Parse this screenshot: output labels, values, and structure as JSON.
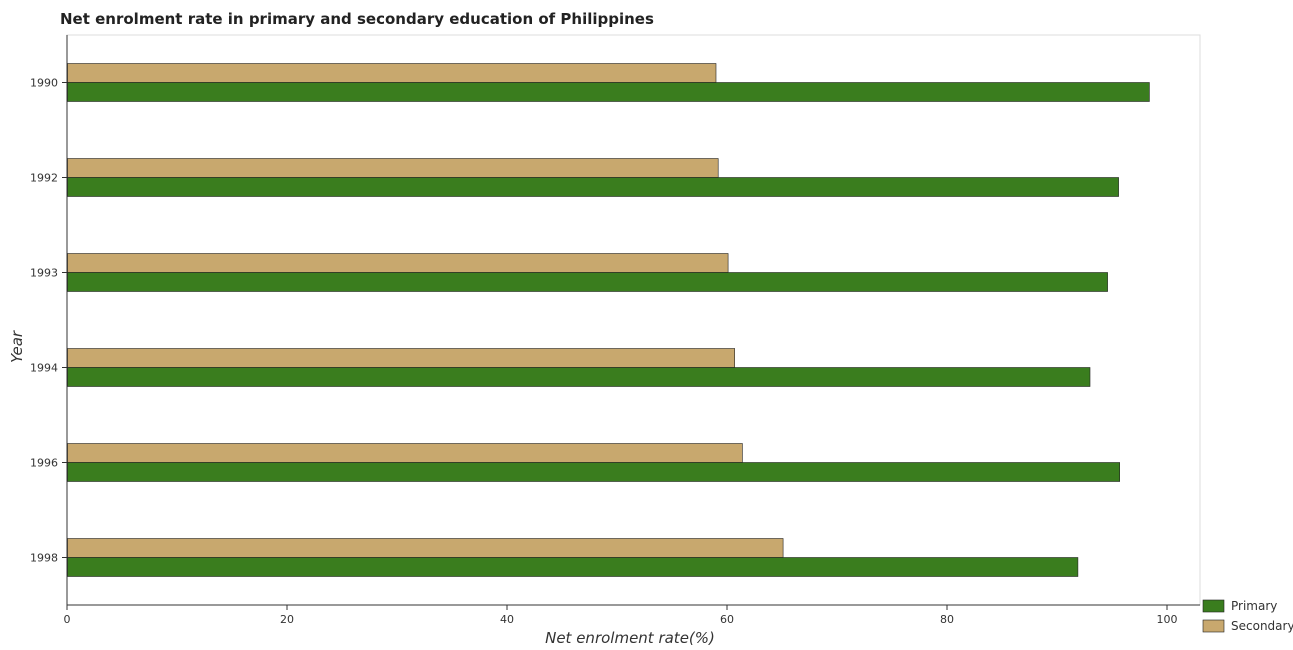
{
  "chart_data": {
    "type": "bar",
    "orientation": "horizontal",
    "title": "Net enrolment rate in primary and secondary education of Philippines",
    "xlabel": "Net enrolment rate(%)",
    "ylabel": "Year",
    "categories": [
      "1990",
      "1992",
      "1993",
      "1994",
      "1996",
      "1998"
    ],
    "series": [
      {
        "name": "Primary",
        "color": "#3a7d1e",
        "values": [
          98.4,
          95.6,
          94.6,
          93.0,
          95.7,
          91.9
        ]
      },
      {
        "name": "Secondary",
        "color": "#c8a86e",
        "values": [
          59.0,
          59.2,
          60.1,
          60.7,
          61.4,
          65.1
        ]
      }
    ],
    "xlim": [
      0,
      103
    ],
    "xticks": [
      0,
      20,
      40,
      60,
      80,
      100
    ],
    "grid": false,
    "legend_position": "bottom-right"
  }
}
